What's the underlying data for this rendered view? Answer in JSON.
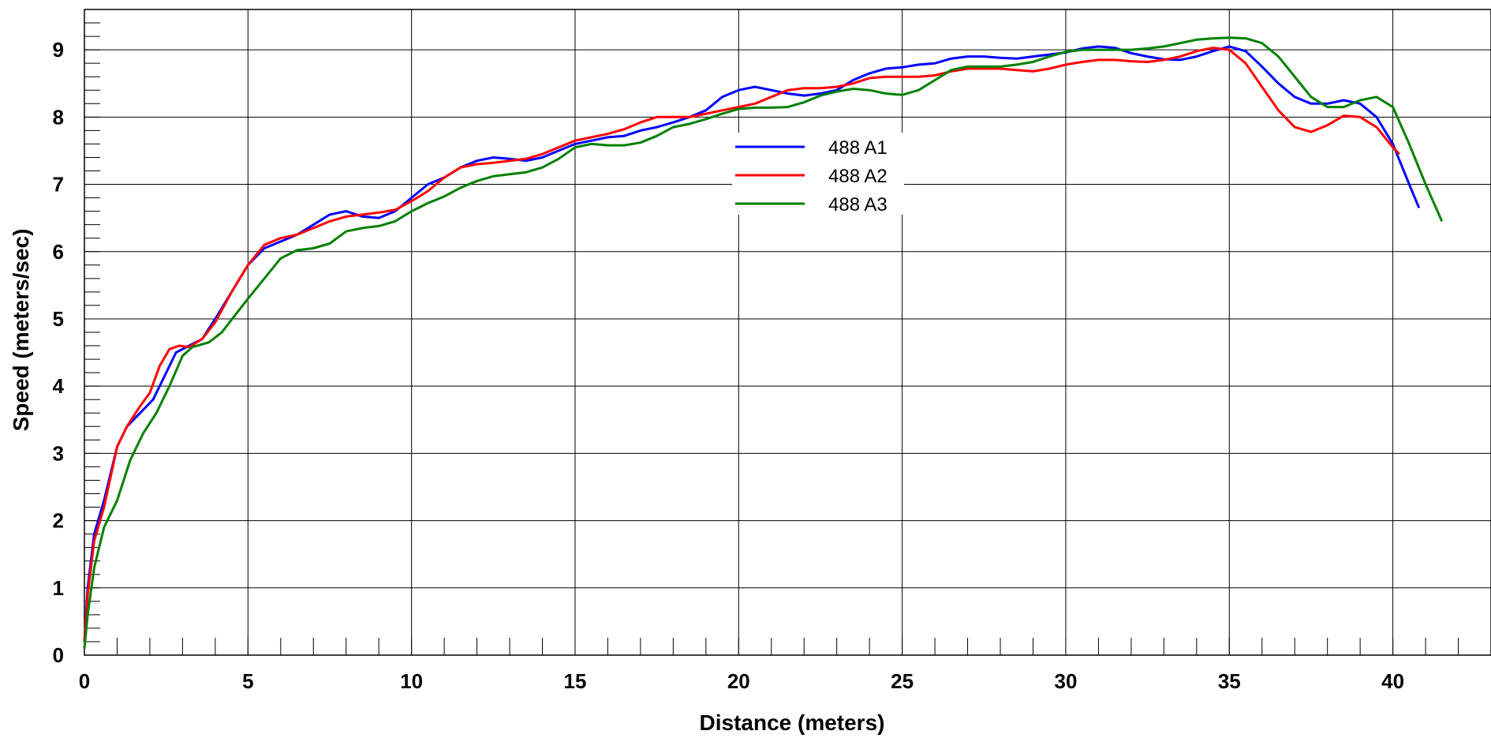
{
  "chart_data": {
    "type": "line",
    "xlabel": "Distance (meters)",
    "ylabel": "Speed (meters/sec)",
    "xlim": [
      0,
      43
    ],
    "ylim": [
      0,
      9.6
    ],
    "xticks": [
      0,
      5,
      10,
      15,
      20,
      25,
      30,
      35,
      40
    ],
    "yticks": [
      0,
      1,
      2,
      3,
      4,
      5,
      6,
      7,
      8,
      9
    ],
    "grid": true,
    "legend_position": "top-center",
    "series": [
      {
        "name": "488 A1",
        "color": "#0000ff",
        "points": [
          [
            0,
            0.2
          ],
          [
            0.1,
            1.0
          ],
          [
            0.3,
            1.8
          ],
          [
            0.6,
            2.3
          ],
          [
            1.0,
            3.1
          ],
          [
            1.3,
            3.4
          ],
          [
            1.7,
            3.6
          ],
          [
            2.1,
            3.8
          ],
          [
            2.5,
            4.2
          ],
          [
            2.8,
            4.5
          ],
          [
            3.2,
            4.6
          ],
          [
            3.6,
            4.7
          ],
          [
            4.0,
            5.0
          ],
          [
            4.5,
            5.4
          ],
          [
            5.0,
            5.8
          ],
          [
            5.5,
            6.05
          ],
          [
            6.0,
            6.15
          ],
          [
            6.5,
            6.25
          ],
          [
            7.0,
            6.4
          ],
          [
            7.5,
            6.55
          ],
          [
            8.0,
            6.6
          ],
          [
            8.5,
            6.52
          ],
          [
            9.0,
            6.5
          ],
          [
            9.5,
            6.6
          ],
          [
            10.0,
            6.8
          ],
          [
            10.5,
            7.0
          ],
          [
            11.0,
            7.1
          ],
          [
            11.5,
            7.25
          ],
          [
            12.0,
            7.35
          ],
          [
            12.5,
            7.4
          ],
          [
            13.0,
            7.38
          ],
          [
            13.5,
            7.35
          ],
          [
            14.0,
            7.4
          ],
          [
            14.5,
            7.5
          ],
          [
            15.0,
            7.6
          ],
          [
            15.5,
            7.65
          ],
          [
            16.0,
            7.7
          ],
          [
            16.5,
            7.72
          ],
          [
            17.0,
            7.8
          ],
          [
            17.5,
            7.85
          ],
          [
            18.0,
            7.92
          ],
          [
            18.5,
            8.0
          ],
          [
            19.0,
            8.1
          ],
          [
            19.5,
            8.3
          ],
          [
            20.0,
            8.4
          ],
          [
            20.5,
            8.45
          ],
          [
            21.0,
            8.4
          ],
          [
            21.5,
            8.35
          ],
          [
            22.0,
            8.32
          ],
          [
            22.5,
            8.35
          ],
          [
            23.0,
            8.4
          ],
          [
            23.5,
            8.55
          ],
          [
            24.0,
            8.65
          ],
          [
            24.5,
            8.72
          ],
          [
            25.0,
            8.74
          ],
          [
            25.5,
            8.78
          ],
          [
            26.0,
            8.8
          ],
          [
            26.5,
            8.87
          ],
          [
            27.0,
            8.9
          ],
          [
            27.5,
            8.9
          ],
          [
            28.0,
            8.88
          ],
          [
            28.5,
            8.87
          ],
          [
            29.0,
            8.9
          ],
          [
            29.5,
            8.93
          ],
          [
            30.0,
            8.96
          ],
          [
            30.5,
            9.02
          ],
          [
            31.0,
            9.05
          ],
          [
            31.5,
            9.03
          ],
          [
            32.0,
            8.95
          ],
          [
            32.5,
            8.9
          ],
          [
            33.0,
            8.86
          ],
          [
            33.5,
            8.85
          ],
          [
            34.0,
            8.9
          ],
          [
            34.5,
            8.98
          ],
          [
            35.0,
            9.05
          ],
          [
            35.5,
            8.98
          ],
          [
            36.0,
            8.75
          ],
          [
            36.5,
            8.5
          ],
          [
            37.0,
            8.3
          ],
          [
            37.5,
            8.2
          ],
          [
            38.0,
            8.2
          ],
          [
            38.5,
            8.25
          ],
          [
            39.0,
            8.2
          ],
          [
            39.5,
            8.0
          ],
          [
            40.0,
            7.6
          ],
          [
            40.5,
            7.0
          ],
          [
            40.8,
            6.65
          ]
        ]
      },
      {
        "name": "488 A2",
        "color": "#ff0000",
        "points": [
          [
            0,
            0.2
          ],
          [
            0.1,
            0.9
          ],
          [
            0.3,
            1.7
          ],
          [
            0.6,
            2.2
          ],
          [
            1.0,
            3.1
          ],
          [
            1.3,
            3.4
          ],
          [
            1.7,
            3.7
          ],
          [
            2.0,
            3.9
          ],
          [
            2.3,
            4.3
          ],
          [
            2.6,
            4.55
          ],
          [
            2.9,
            4.6
          ],
          [
            3.2,
            4.58
          ],
          [
            3.6,
            4.7
          ],
          [
            4.0,
            4.95
          ],
          [
            4.5,
            5.4
          ],
          [
            5.0,
            5.8
          ],
          [
            5.5,
            6.1
          ],
          [
            6.0,
            6.2
          ],
          [
            6.5,
            6.25
          ],
          [
            7.0,
            6.35
          ],
          [
            7.5,
            6.45
          ],
          [
            8.0,
            6.52
          ],
          [
            8.5,
            6.55
          ],
          [
            9.0,
            6.58
          ],
          [
            9.5,
            6.62
          ],
          [
            10.0,
            6.75
          ],
          [
            10.5,
            6.9
          ],
          [
            11.0,
            7.1
          ],
          [
            11.5,
            7.25
          ],
          [
            12.0,
            7.3
          ],
          [
            12.5,
            7.32
          ],
          [
            13.0,
            7.35
          ],
          [
            13.5,
            7.38
          ],
          [
            14.0,
            7.45
          ],
          [
            14.5,
            7.55
          ],
          [
            15.0,
            7.65
          ],
          [
            15.5,
            7.7
          ],
          [
            16.0,
            7.75
          ],
          [
            16.5,
            7.82
          ],
          [
            17.0,
            7.92
          ],
          [
            17.5,
            8.0
          ],
          [
            18.0,
            8.0
          ],
          [
            18.5,
            8.0
          ],
          [
            19.0,
            8.05
          ],
          [
            19.5,
            8.1
          ],
          [
            20.0,
            8.15
          ],
          [
            20.5,
            8.2
          ],
          [
            21.0,
            8.3
          ],
          [
            21.5,
            8.4
          ],
          [
            22.0,
            8.43
          ],
          [
            22.5,
            8.43
          ],
          [
            23.0,
            8.45
          ],
          [
            23.5,
            8.5
          ],
          [
            24.0,
            8.58
          ],
          [
            24.5,
            8.6
          ],
          [
            25.0,
            8.6
          ],
          [
            25.5,
            8.6
          ],
          [
            26.0,
            8.62
          ],
          [
            26.5,
            8.68
          ],
          [
            27.0,
            8.72
          ],
          [
            27.5,
            8.72
          ],
          [
            28.0,
            8.72
          ],
          [
            28.5,
            8.7
          ],
          [
            29.0,
            8.68
          ],
          [
            29.5,
            8.72
          ],
          [
            30.0,
            8.78
          ],
          [
            30.5,
            8.82
          ],
          [
            31.0,
            8.85
          ],
          [
            31.5,
            8.85
          ],
          [
            32.0,
            8.83
          ],
          [
            32.5,
            8.82
          ],
          [
            33.0,
            8.85
          ],
          [
            33.5,
            8.9
          ],
          [
            34.0,
            8.98
          ],
          [
            34.5,
            9.03
          ],
          [
            35.0,
            9.0
          ],
          [
            35.5,
            8.8
          ],
          [
            36.0,
            8.45
          ],
          [
            36.5,
            8.1
          ],
          [
            37.0,
            7.85
          ],
          [
            37.5,
            7.78
          ],
          [
            38.0,
            7.88
          ],
          [
            38.5,
            8.02
          ],
          [
            39.0,
            8.0
          ],
          [
            39.5,
            7.85
          ],
          [
            40.0,
            7.55
          ],
          [
            40.2,
            7.45
          ]
        ]
      },
      {
        "name": "488 A3",
        "color": "#008000",
        "points": [
          [
            0,
            0.1
          ],
          [
            0.1,
            0.6
          ],
          [
            0.3,
            1.3
          ],
          [
            0.6,
            1.9
          ],
          [
            1.0,
            2.3
          ],
          [
            1.4,
            2.9
          ],
          [
            1.8,
            3.3
          ],
          [
            2.2,
            3.6
          ],
          [
            2.6,
            4.0
          ],
          [
            3.0,
            4.45
          ],
          [
            3.3,
            4.58
          ],
          [
            3.8,
            4.65
          ],
          [
            4.2,
            4.8
          ],
          [
            4.6,
            5.05
          ],
          [
            5.0,
            5.3
          ],
          [
            5.5,
            5.6
          ],
          [
            6.0,
            5.9
          ],
          [
            6.5,
            6.02
          ],
          [
            7.0,
            6.05
          ],
          [
            7.5,
            6.12
          ],
          [
            8.0,
            6.3
          ],
          [
            8.5,
            6.35
          ],
          [
            9.0,
            6.38
          ],
          [
            9.5,
            6.45
          ],
          [
            10.0,
            6.6
          ],
          [
            10.5,
            6.72
          ],
          [
            11.0,
            6.82
          ],
          [
            11.5,
            6.95
          ],
          [
            12.0,
            7.05
          ],
          [
            12.5,
            7.12
          ],
          [
            13.0,
            7.15
          ],
          [
            13.5,
            7.18
          ],
          [
            14.0,
            7.25
          ],
          [
            14.5,
            7.38
          ],
          [
            15.0,
            7.55
          ],
          [
            15.5,
            7.6
          ],
          [
            16.0,
            7.58
          ],
          [
            16.5,
            7.58
          ],
          [
            17.0,
            7.62
          ],
          [
            17.5,
            7.72
          ],
          [
            18.0,
            7.85
          ],
          [
            18.5,
            7.9
          ],
          [
            19.0,
            7.97
          ],
          [
            19.5,
            8.05
          ],
          [
            20.0,
            8.12
          ],
          [
            20.5,
            8.14
          ],
          [
            21.0,
            8.14
          ],
          [
            21.5,
            8.15
          ],
          [
            22.0,
            8.22
          ],
          [
            22.5,
            8.32
          ],
          [
            23.0,
            8.38
          ],
          [
            23.5,
            8.42
          ],
          [
            24.0,
            8.4
          ],
          [
            24.5,
            8.35
          ],
          [
            25.0,
            8.33
          ],
          [
            25.5,
            8.4
          ],
          [
            26.0,
            8.55
          ],
          [
            26.5,
            8.7
          ],
          [
            27.0,
            8.75
          ],
          [
            27.5,
            8.75
          ],
          [
            28.0,
            8.75
          ],
          [
            28.5,
            8.78
          ],
          [
            29.0,
            8.82
          ],
          [
            29.5,
            8.9
          ],
          [
            30.0,
            8.97
          ],
          [
            30.5,
            9.0
          ],
          [
            31.0,
            9.0
          ],
          [
            31.5,
            9.0
          ],
          [
            32.0,
            9.0
          ],
          [
            32.5,
            9.02
          ],
          [
            33.0,
            9.05
          ],
          [
            33.5,
            9.1
          ],
          [
            34.0,
            9.15
          ],
          [
            34.5,
            9.17
          ],
          [
            35.0,
            9.18
          ],
          [
            35.5,
            9.17
          ],
          [
            36.0,
            9.1
          ],
          [
            36.5,
            8.9
          ],
          [
            37.0,
            8.6
          ],
          [
            37.5,
            8.3
          ],
          [
            38.0,
            8.15
          ],
          [
            38.5,
            8.15
          ],
          [
            39.0,
            8.25
          ],
          [
            39.5,
            8.3
          ],
          [
            40.0,
            8.15
          ],
          [
            40.5,
            7.6
          ],
          [
            41.0,
            7.0
          ],
          [
            41.5,
            6.45
          ]
        ]
      }
    ]
  }
}
